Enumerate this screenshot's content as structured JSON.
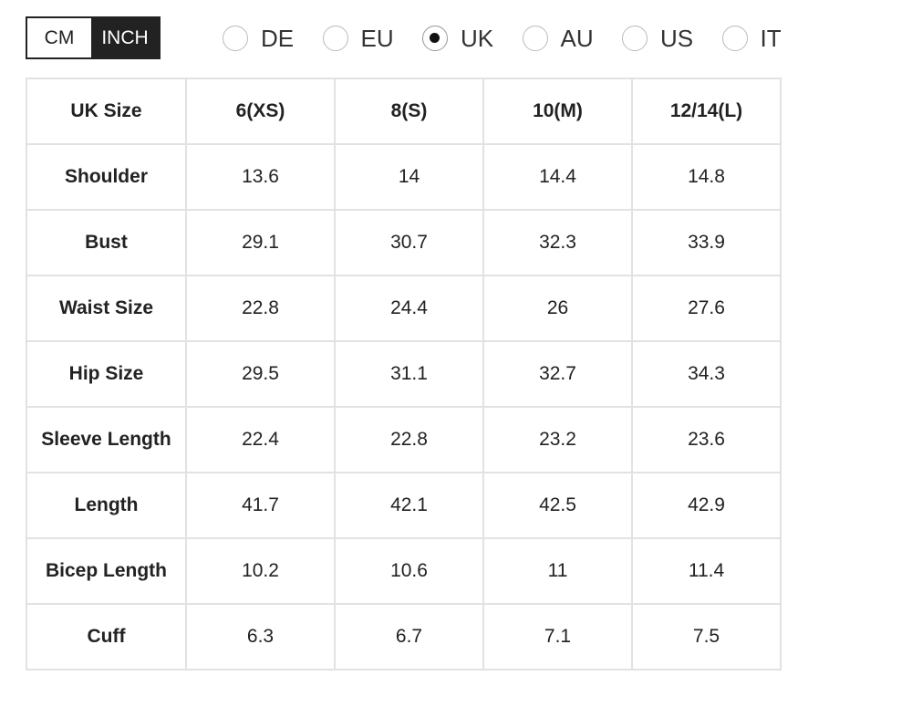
{
  "unit_toggle": {
    "options": [
      "CM",
      "INCH"
    ],
    "selected_index": 1
  },
  "size_regions": {
    "options": [
      "DE",
      "EU",
      "UK",
      "AU",
      "US",
      "IT"
    ],
    "selected_index": 2
  },
  "table": {
    "header": [
      "UK Size",
      "6(XS)",
      "8(S)",
      "10(M)",
      "12/14(L)"
    ],
    "rows": [
      [
        "Shoulder",
        "13.6",
        "14",
        "14.4",
        "14.8"
      ],
      [
        "Bust",
        "29.1",
        "30.7",
        "32.3",
        "33.9"
      ],
      [
        "Waist Size",
        "22.8",
        "24.4",
        "26",
        "27.6"
      ],
      [
        "Hip Size",
        "29.5",
        "31.1",
        "32.7",
        "34.3"
      ],
      [
        "Sleeve Length",
        "22.4",
        "22.8",
        "23.2",
        "23.6"
      ],
      [
        "Length",
        "41.7",
        "42.1",
        "42.5",
        "42.9"
      ],
      [
        "Bicep Length",
        "10.2",
        "10.6",
        "11",
        "11.4"
      ],
      [
        "Cuff",
        "6.3",
        "6.7",
        "7.1",
        "7.5"
      ]
    ]
  }
}
